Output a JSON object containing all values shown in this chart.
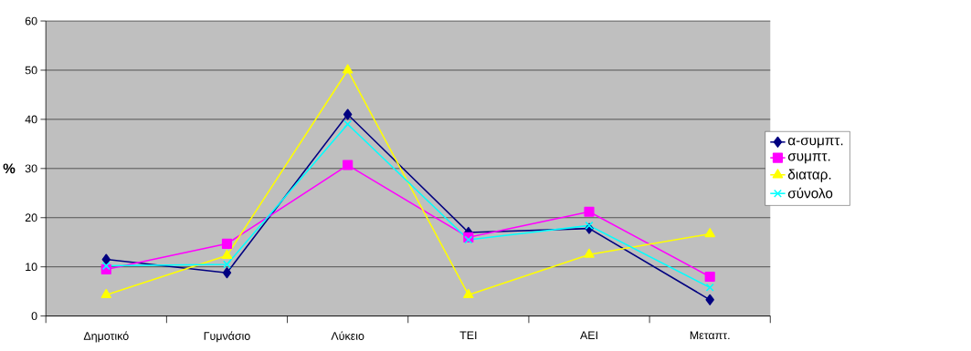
{
  "chart_data": {
    "type": "line",
    "ylabel": "%",
    "categories": [
      "Δημοτικό",
      "Γυμνάσιο",
      "Λύκειο",
      "ΤΕΙ",
      "ΑΕΙ",
      "Μεταπτ."
    ],
    "series": [
      {
        "name": "α-συμπτ.",
        "color": "#000080",
        "marker": "diamond",
        "values": [
          11.5,
          8.8,
          41,
          17,
          17.8,
          3.3
        ]
      },
      {
        "name": "συμπτ.",
        "color": "#ff00ff",
        "marker": "square",
        "values": [
          9.5,
          14.7,
          30.7,
          16,
          21.2,
          8
        ]
      },
      {
        "name": "διαταρ.",
        "color": "#ffff00",
        "marker": "triangle",
        "values": [
          4.3,
          12.3,
          50,
          4.3,
          12.5,
          16.7
        ]
      },
      {
        "name": "σύνολο",
        "color": "#00ffff",
        "marker": "cross",
        "values": [
          10.2,
          10.5,
          39,
          15.5,
          18.4,
          5.8
        ]
      }
    ],
    "ylim": [
      0,
      60
    ],
    "yticks": [
      0,
      10,
      20,
      30,
      40,
      50,
      60
    ],
    "grid": "y",
    "legend": "right"
  }
}
